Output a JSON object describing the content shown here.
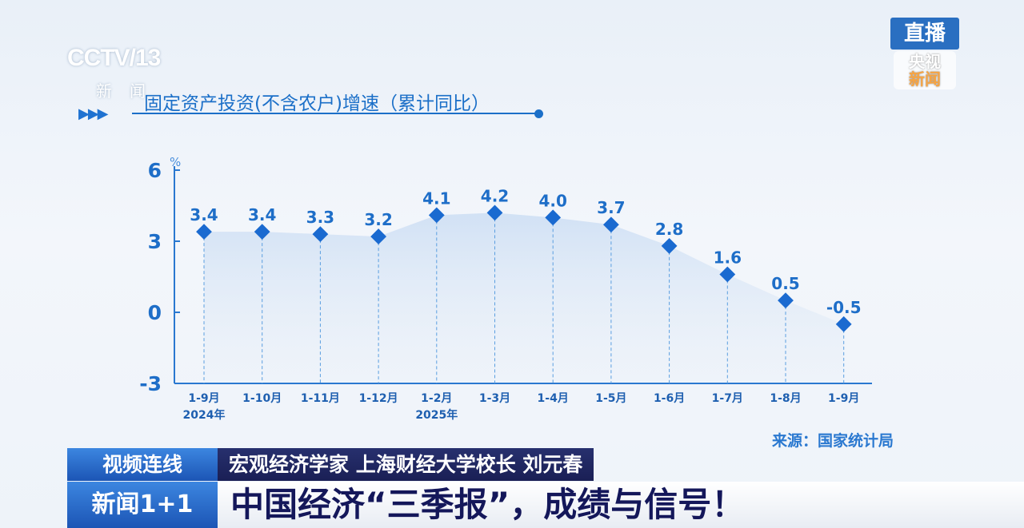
{
  "channel": {
    "logo": "CCTV 13",
    "sub": "新闻"
  },
  "live_badge": {
    "top": "直播",
    "bottom_1": "央视",
    "bottom_2": "新闻"
  },
  "source": "来源：国家统计局",
  "lower_third": {
    "tag": "视频连线",
    "speaker": "宏观经济学家 上海财经大学校长 刘元春",
    "program": "新闻1+1",
    "headline": "中国经济“三季报”，成绩与信号！"
  },
  "colors": {
    "accent": "#1b6fc8",
    "marker": "#1a6ad0"
  },
  "chart_data": {
    "type": "line",
    "title": "固定资产投资(不含农户)增速（累计同比）",
    "ylabel": "%",
    "ylim": [
      -3,
      6
    ],
    "yticks": [
      "6",
      "3",
      "0",
      "-3"
    ],
    "categories": [
      "1-9月",
      "1-10月",
      "1-11月",
      "1-12月",
      "1-2月",
      "1-3月",
      "1-4月",
      "1-5月",
      "1-6月",
      "1-7月",
      "1-8月",
      "1-9月"
    ],
    "year_labels": {
      "0": "2024年",
      "4": "2025年"
    },
    "values": [
      3.4,
      3.4,
      3.3,
      3.2,
      4.1,
      4.2,
      4.0,
      3.7,
      2.8,
      1.6,
      0.5,
      -0.5
    ],
    "data_labels": [
      "3.4",
      "3.4",
      "3.3",
      "3.2",
      "4.1",
      "4.2",
      "4.0",
      "3.7",
      "2.8",
      "1.6",
      "0.5",
      "-0.5"
    ],
    "grid": false,
    "area_fill": true
  }
}
